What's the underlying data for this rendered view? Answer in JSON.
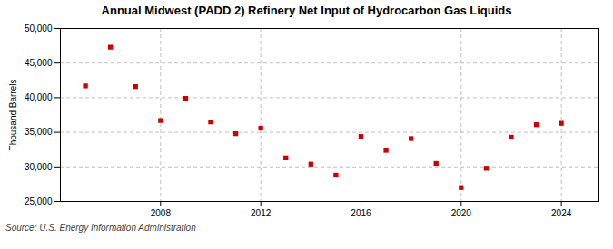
{
  "chart_data": {
    "type": "scatter",
    "title": "Annual Midwest (PADD 2) Refinery Net Input of Hydrocarbon Gas Liquids",
    "ylabel": "Thousand Barrels",
    "annotation": "Source: U.S. Energy Information Administration",
    "x": [
      2005,
      2006,
      2007,
      2008,
      2009,
      2010,
      2011,
      2012,
      2013,
      2014,
      2015,
      2016,
      2017,
      2018,
      2019,
      2020,
      2021,
      2022,
      2023,
      2024
    ],
    "values": [
      41700,
      47300,
      41600,
      36700,
      39900,
      36500,
      34800,
      35600,
      31300,
      30400,
      28800,
      34400,
      32400,
      34100,
      30500,
      27000,
      29800,
      34300,
      36100,
      36300
    ],
    "color": "#cc0000",
    "marker": "square",
    "xlim": [
      2004.0,
      2025.5
    ],
    "xticks": [
      2008,
      2012,
      2016,
      2020,
      2024
    ],
    "ylim": [
      25000,
      50000
    ],
    "yticks": [
      {
        "value": 25000,
        "label": "25,000"
      },
      {
        "value": 30000,
        "label": "30,000"
      },
      {
        "value": 35000,
        "label": "35,000"
      },
      {
        "value": 40000,
        "label": "40,000"
      },
      {
        "value": 45000,
        "label": "45,000"
      },
      {
        "value": 50000,
        "label": "50,000"
      }
    ],
    "grid": true
  }
}
